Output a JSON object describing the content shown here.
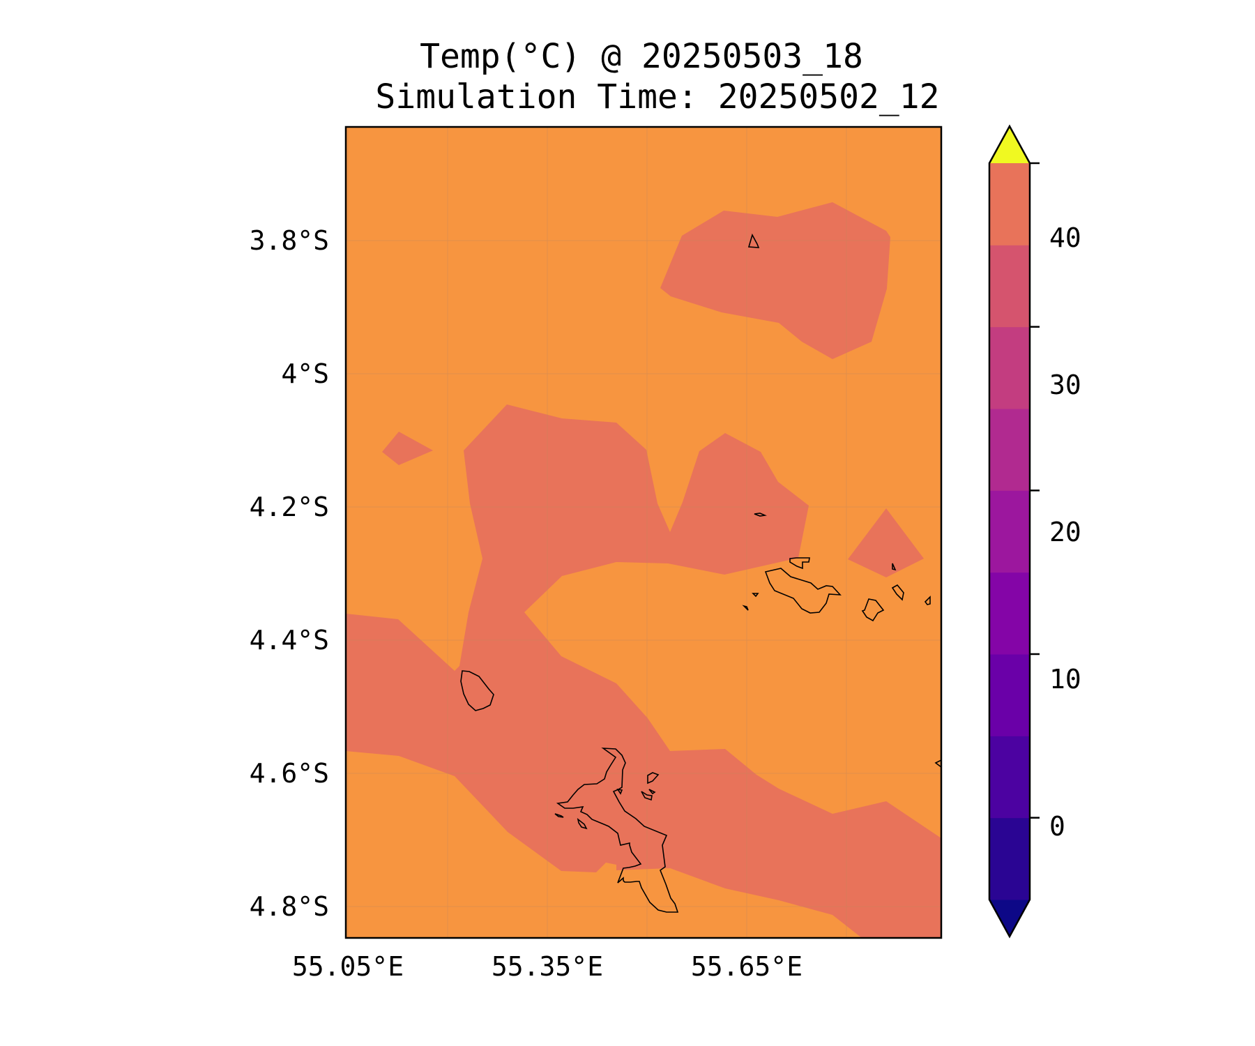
{
  "title": {
    "line1": "Temp(°C) @ 20250503_18",
    "line2": "Simulation Time: 20250502_12"
  },
  "chart_data": {
    "type": "heatmap",
    "title": "Temp(°C) @ 20250503_18\nSimulation Time: 20250502_12",
    "x_ticks": [
      "55.05°E",
      "55.35°E",
      "55.65°E"
    ],
    "y_ticks": [
      "3.8°S",
      "4°S",
      "4.2°S",
      "4.4°S",
      "4.6°S",
      "4.8°S"
    ],
    "x_tick_values": [
      55.05,
      55.35,
      55.65
    ],
    "y_tick_values": [
      -3.8,
      -4.0,
      -4.2,
      -4.4,
      -4.6,
      -4.8
    ],
    "colorbar": {
      "label_values": [
        0,
        10,
        20,
        30,
        40
      ],
      "labels": [
        "0",
        "10",
        "20",
        "30",
        "40"
      ],
      "levels": [
        -5,
        0,
        5,
        10,
        15,
        20,
        25,
        30,
        35,
        40
      ],
      "extend": "both",
      "colors": [
        "#0d0887",
        "#2a0593",
        "#4c02a1",
        "#6a00a8",
        "#8405a7",
        "#9c179e",
        "#b12a90",
        "#c33d80",
        "#d5546e",
        "#e8735a",
        "#f89540",
        "#fdb42f",
        "#f4e61e",
        "#f0f921"
      ]
    },
    "field_colors": {
      "range_30_35": "#f79540",
      "range_25_30": "#e8735a"
    },
    "grid": true
  }
}
